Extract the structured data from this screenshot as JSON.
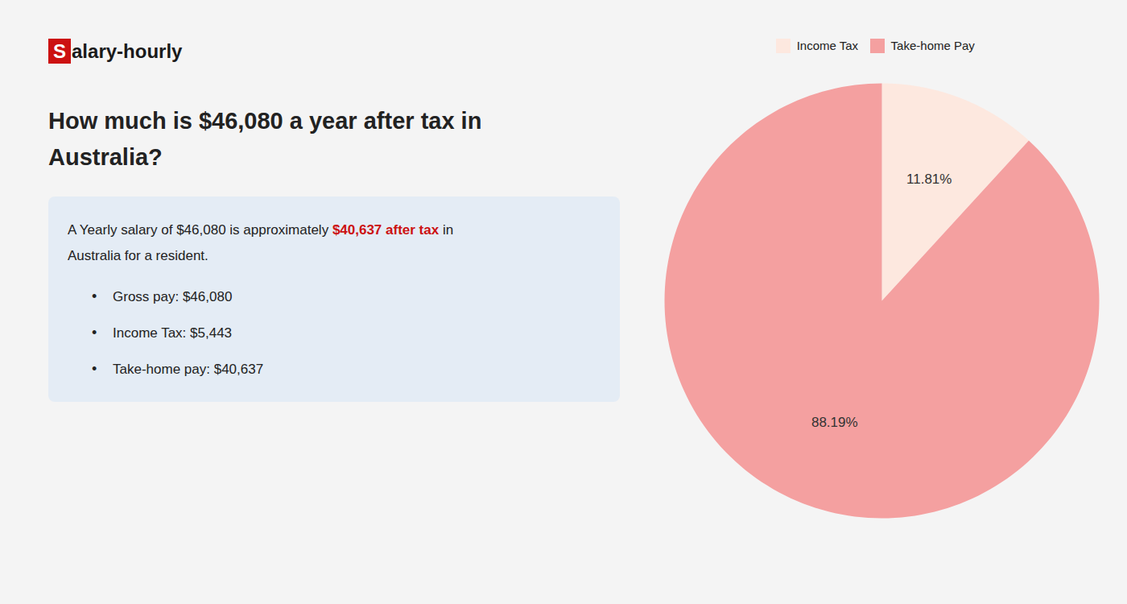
{
  "chart_data": {
    "type": "pie",
    "title": "How much is $46,080 a year after tax in\nAustralia?",
    "categories": [
      "Income Tax",
      "Take-home Pay"
    ],
    "values": [
      11.81,
      88.19
    ],
    "value_labels": [
      "11.81%",
      "88.19%"
    ],
    "colors": [
      "#fde8df",
      "#f4a0a0"
    ],
    "data_labels": true,
    "legend": "top",
    "annotations": [
      [
        {
          "text": "S",
          "color": "#cc1111"
        },
        {
          "text": "alary-hourly"
        }
      ],
      [
        {
          "text": "A Yearly salary of $46,080 is approximately "
        },
        {
          "text": "$40,637 after tax",
          "color": "#cc1111"
        },
        {
          "text": " in"
        }
      ],
      [
        {
          "text": "Australia for a resident."
        }
      ],
      [
        {
          "text": "•"
        },
        {
          "text": "Gross pay: $46,080"
        }
      ],
      [
        {
          "text": "•"
        },
        {
          "text": "Income Tax: $5,443"
        }
      ],
      [
        {
          "text": "•"
        },
        {
          "text": "Take-home pay: $40,637"
        }
      ]
    ]
  }
}
